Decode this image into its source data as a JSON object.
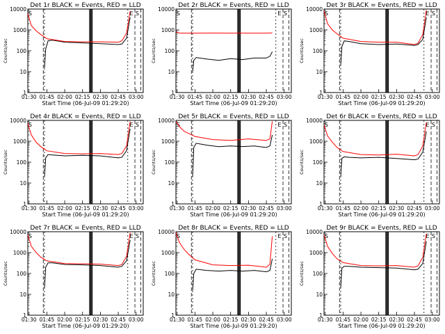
{
  "chart_data": [
    {
      "type": "line",
      "title": "Det 1r BLACK = Events, RED = LLD",
      "xlabel": "Start Time (06-Jul-09 01:29:20)",
      "ylabel": "Counts/sec",
      "yscale": "log",
      "ylim": [
        1,
        10000
      ],
      "x_ticks": [
        "01:30",
        "01:45",
        "02:00",
        "02:15",
        "02:30",
        "02:45",
        "03:00"
      ],
      "y_ticks": [
        "1",
        "10",
        "100",
        "1000",
        "10000"
      ],
      "markers_top": [
        "S",
        "E",
        "S"
      ],
      "series": [
        {
          "name": "BLACK",
          "color": "#000000",
          "x": [
            "01:43",
            "01:44",
            "01:46",
            "01:50",
            "02:00",
            "02:15",
            "02:30",
            "02:45",
            "02:48",
            "02:52",
            "02:55"
          ],
          "y": [
            15,
            120,
            300,
            320,
            260,
            240,
            220,
            200,
            210,
            400,
            4000
          ]
        },
        {
          "name": "RED",
          "color": "#ff0000",
          "x": [
            "01:29",
            "01:32",
            "01:36",
            "01:40",
            "01:45",
            "02:00",
            "02:15",
            "02:30",
            "02:45",
            "02:48",
            "02:52",
            "02:55"
          ],
          "y": [
            6000,
            1600,
            900,
            600,
            380,
            280,
            270,
            270,
            260,
            300,
            700,
            8000
          ]
        }
      ]
    },
    {
      "type": "line",
      "title": "Det 2r BLACK = Events, RED = LLD",
      "xlabel": "Start Time (06-Jul-09 01:29:20)",
      "ylabel": "Counts/sec",
      "yscale": "log",
      "ylim": [
        1,
        10000
      ],
      "x_ticks": [
        "01:30",
        "01:45",
        "02:00",
        "02:15",
        "02:30",
        "02:45",
        "03:00"
      ],
      "y_ticks": [
        "1",
        "10",
        "100",
        "1000",
        "10000"
      ],
      "markers_top": [
        "S",
        "E",
        "S"
      ],
      "series": [
        {
          "name": "BLACK",
          "color": "#000000",
          "x": [
            "01:43",
            "01:44",
            "01:46",
            "01:55",
            "02:05",
            "02:15",
            "02:25",
            "02:35",
            "02:45",
            "02:48",
            "02:50"
          ],
          "y": [
            10,
            35,
            48,
            40,
            35,
            42,
            38,
            45,
            45,
            55,
            90
          ]
        },
        {
          "name": "RED",
          "color": "#ff0000",
          "x": [
            "01:29",
            "01:32",
            "01:45",
            "02:00",
            "02:15",
            "02:30",
            "02:45",
            "02:50"
          ],
          "y": [
            800,
            700,
            700,
            710,
            700,
            700,
            700,
            720
          ]
        }
      ]
    },
    {
      "type": "line",
      "title": "Det 3r BLACK = Events, RED = LLD",
      "xlabel": "Start Time (06-Jul-09 01:29:20)",
      "ylabel": "Counts/sec",
      "yscale": "log",
      "ylim": [
        1,
        10000
      ],
      "x_ticks": [
        "01:30",
        "01:45",
        "02:00",
        "02:15",
        "02:30",
        "02:45",
        "03:00"
      ],
      "y_ticks": [
        "1",
        "10",
        "100",
        "1000",
        "10000"
      ],
      "markers_top": [
        "S",
        "E",
        "S"
      ],
      "series": [
        {
          "name": "BLACK",
          "color": "#000000",
          "x": [
            "01:43",
            "01:44",
            "01:46",
            "01:50",
            "02:00",
            "02:15",
            "02:30",
            "02:45",
            "02:48",
            "02:52",
            "02:55"
          ],
          "y": [
            20,
            160,
            300,
            280,
            220,
            200,
            210,
            180,
            200,
            350,
            4000
          ]
        },
        {
          "name": "RED",
          "color": "#ff0000",
          "x": [
            "01:29",
            "01:32",
            "01:36",
            "01:40",
            "01:45",
            "02:00",
            "02:15",
            "02:30",
            "02:45",
            "02:48",
            "02:52",
            "02:55"
          ],
          "y": [
            8000,
            2000,
            1000,
            650,
            400,
            280,
            260,
            260,
            200,
            230,
            600,
            9000
          ]
        }
      ]
    },
    {
      "type": "line",
      "title": "Det 4r BLACK = Events, RED = LLD",
      "xlabel": "Start Time (06-Jul-09 01:29:20)",
      "ylabel": "Counts/sec",
      "yscale": "log",
      "ylim": [
        1,
        10000
      ],
      "x_ticks": [
        "01:30",
        "01:45",
        "02:00",
        "02:15",
        "02:30",
        "02:45",
        "03:00"
      ],
      "y_ticks": [
        "1",
        "10",
        "100",
        "1000",
        "10000"
      ],
      "markers_top": [
        "S",
        "E",
        "S"
      ],
      "series": [
        {
          "name": "BLACK",
          "color": "#000000",
          "x": [
            "01:43",
            "01:44",
            "01:46",
            "01:50",
            "02:00",
            "02:15",
            "02:30",
            "02:45",
            "02:48",
            "02:52",
            "02:55"
          ],
          "y": [
            20,
            160,
            230,
            220,
            200,
            210,
            200,
            160,
            170,
            350,
            4000
          ]
        },
        {
          "name": "RED",
          "color": "#ff0000",
          "x": [
            "01:29",
            "01:32",
            "01:36",
            "01:40",
            "01:45",
            "02:00",
            "02:15",
            "02:30",
            "02:45",
            "02:48",
            "02:52",
            "02:55"
          ],
          "y": [
            7000,
            2000,
            900,
            550,
            350,
            260,
            250,
            260,
            230,
            260,
            600,
            9000
          ]
        }
      ]
    },
    {
      "type": "line",
      "title": "Det 5r BLACK = Events, RED = LLD",
      "xlabel": "Start Time (06-Jul-09 01:29:20)",
      "ylabel": "Counts/sec",
      "yscale": "log",
      "ylim": [
        1,
        10000
      ],
      "x_ticks": [
        "01:30",
        "01:45",
        "02:00",
        "02:15",
        "02:30",
        "02:45",
        "03:00"
      ],
      "y_ticks": [
        "1",
        "10",
        "100",
        "1000",
        "10000"
      ],
      "markers_top": [
        "S",
        "E",
        "S"
      ],
      "series": [
        {
          "name": "BLACK",
          "color": "#000000",
          "x": [
            "01:43",
            "01:44",
            "01:46",
            "01:55",
            "02:05",
            "02:15",
            "02:25",
            "02:35",
            "02:45",
            "02:48",
            "02:50"
          ],
          "y": [
            20,
            500,
            800,
            650,
            550,
            600,
            560,
            600,
            500,
            600,
            2000
          ]
        },
        {
          "name": "RED",
          "color": "#ff0000",
          "x": [
            "01:29",
            "01:32",
            "01:36",
            "01:40",
            "01:45",
            "02:00",
            "02:15",
            "02:30",
            "02:45",
            "02:48",
            "02:50"
          ],
          "y": [
            9000,
            5000,
            3000,
            2300,
            1700,
            1200,
            1100,
            1300,
            1100,
            1300,
            9000
          ]
        }
      ]
    },
    {
      "type": "line",
      "title": "Det 6r BLACK = Events, RED = LLD",
      "xlabel": "Start Time (06-Jul-09 01:29:20)",
      "ylabel": "Counts/sec",
      "yscale": "log",
      "ylim": [
        1,
        10000
      ],
      "x_ticks": [
        "01:30",
        "01:45",
        "02:00",
        "02:15",
        "02:30",
        "02:45",
        "03:00"
      ],
      "y_ticks": [
        "1",
        "10",
        "100",
        "1000",
        "10000"
      ],
      "markers_top": [
        "S",
        "E",
        "S"
      ],
      "series": [
        {
          "name": "BLACK",
          "color": "#000000",
          "x": [
            "01:43",
            "01:44",
            "01:46",
            "01:50",
            "02:00",
            "02:15",
            "02:30",
            "02:45",
            "02:48",
            "02:52",
            "02:55"
          ],
          "y": [
            20,
            150,
            180,
            170,
            160,
            170,
            150,
            130,
            140,
            300,
            3000
          ]
        },
        {
          "name": "RED",
          "color": "#ff0000",
          "x": [
            "01:29",
            "01:32",
            "01:36",
            "01:40",
            "01:45",
            "02:00",
            "02:15",
            "02:30",
            "02:45",
            "02:48",
            "02:52",
            "02:55"
          ],
          "y": [
            6000,
            1800,
            900,
            500,
            320,
            230,
            220,
            240,
            200,
            230,
            600,
            8000
          ]
        }
      ]
    },
    {
      "type": "line",
      "title": "Det 7r BLACK = Events, RED = LLD",
      "xlabel": "Start Time (06-Jul-09 01:29:20)",
      "ylabel": "Counts/sec",
      "yscale": "log",
      "ylim": [
        1,
        10000
      ],
      "x_ticks": [
        "01:30",
        "01:45",
        "02:00",
        "02:15",
        "02:30",
        "02:45",
        "03:00"
      ],
      "y_ticks": [
        "1",
        "10",
        "100",
        "1000",
        "10000"
      ],
      "markers_top": [
        "S",
        "E",
        "S"
      ],
      "series": [
        {
          "name": "BLACK",
          "color": "#000000",
          "x": [
            "01:43",
            "01:44",
            "01:46",
            "01:50",
            "02:00",
            "02:15",
            "02:30",
            "02:45",
            "02:48",
            "02:52",
            "02:55"
          ],
          "y": [
            20,
            200,
            320,
            320,
            270,
            260,
            240,
            200,
            220,
            400,
            4000
          ]
        },
        {
          "name": "RED",
          "color": "#ff0000",
          "x": [
            "01:29",
            "01:32",
            "01:36",
            "01:40",
            "01:45",
            "02:00",
            "02:15",
            "02:30",
            "02:45",
            "02:48",
            "02:52",
            "02:55"
          ],
          "y": [
            7000,
            2000,
            1000,
            600,
            400,
            300,
            290,
            280,
            240,
            270,
            650,
            9000
          ]
        }
      ]
    },
    {
      "type": "line",
      "title": "Det 8r BLACK = Events, RED = LLD",
      "xlabel": "Start Time (06-Jul-09 01:29:20)",
      "ylabel": "Counts/sec",
      "yscale": "log",
      "ylim": [
        1,
        10000
      ],
      "x_ticks": [
        "01:30",
        "01:45",
        "02:00",
        "02:15",
        "02:30",
        "02:45",
        "03:00"
      ],
      "y_ticks": [
        "1",
        "10",
        "100",
        "1000",
        "10000"
      ],
      "markers_top": [
        "S",
        "E",
        "S"
      ],
      "series": [
        {
          "name": "BLACK",
          "color": "#000000",
          "x": [
            "01:43",
            "01:44",
            "01:46",
            "01:55",
            "02:05",
            "02:15",
            "02:25",
            "02:35",
            "02:45",
            "02:48",
            "02:50"
          ],
          "y": [
            15,
            100,
            160,
            140,
            130,
            140,
            130,
            140,
            120,
            140,
            500
          ]
        },
        {
          "name": "RED",
          "color": "#ff0000",
          "x": [
            "01:29",
            "01:32",
            "01:36",
            "01:40",
            "01:45",
            "02:00",
            "02:15",
            "02:30",
            "02:45",
            "02:48",
            "02:50"
          ],
          "y": [
            9000,
            3000,
            1400,
            800,
            450,
            260,
            240,
            250,
            200,
            280,
            6000
          ]
        }
      ]
    },
    {
      "type": "line",
      "title": "Det 9r BLACK = Events, RED = LLD",
      "xlabel": "Start Time (06-Jul-09 01:29:20)",
      "ylabel": "Counts/sec",
      "yscale": "log",
      "ylim": [
        1,
        10000
      ],
      "x_ticks": [
        "01:30",
        "01:45",
        "02:00",
        "02:15",
        "02:30",
        "02:45",
        "03:00"
      ],
      "y_ticks": [
        "1",
        "10",
        "100",
        "1000",
        "10000"
      ],
      "markers_top": [
        "S",
        "E",
        "S"
      ],
      "series": [
        {
          "name": "BLACK",
          "color": "#000000",
          "x": [
            "01:43",
            "01:44",
            "01:46",
            "01:50",
            "02:00",
            "02:15",
            "02:30",
            "02:45",
            "02:48",
            "02:52",
            "02:55"
          ],
          "y": [
            20,
            180,
            220,
            220,
            200,
            190,
            180,
            150,
            160,
            300,
            3500
          ]
        },
        {
          "name": "RED",
          "color": "#ff0000",
          "x": [
            "01:29",
            "01:32",
            "01:36",
            "01:40",
            "01:45",
            "02:00",
            "02:15",
            "02:30",
            "02:45",
            "02:48",
            "02:52",
            "02:55"
          ],
          "y": [
            7000,
            2000,
            900,
            500,
            330,
            240,
            230,
            240,
            200,
            230,
            600,
            8000
          ]
        }
      ]
    }
  ]
}
